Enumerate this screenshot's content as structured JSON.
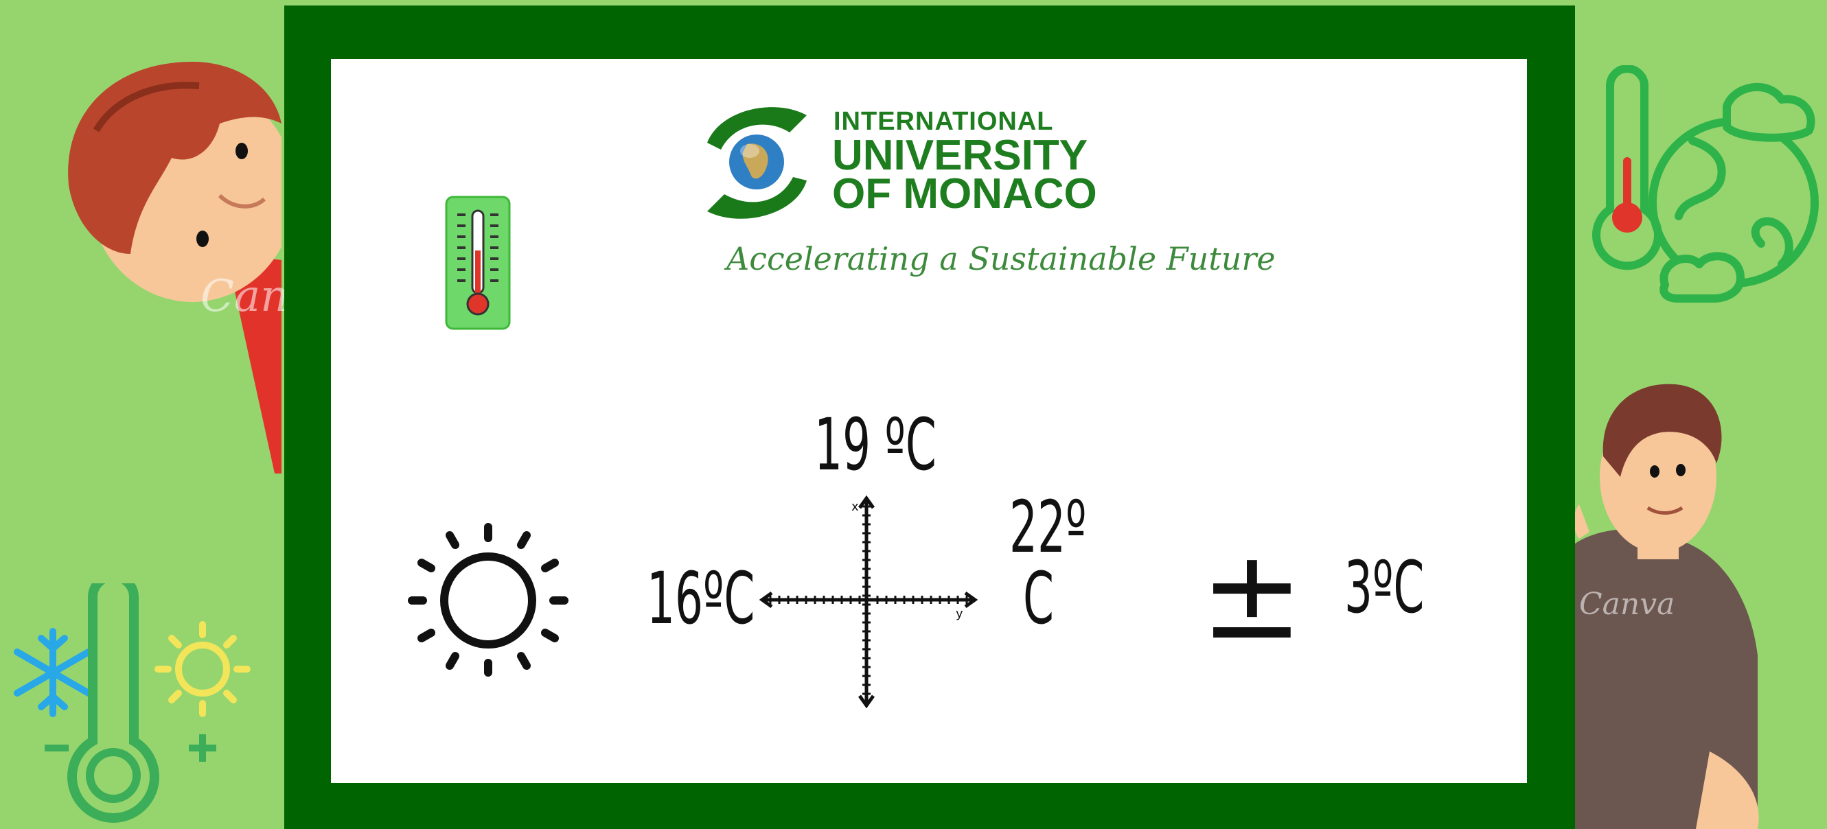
{
  "logo": {
    "line1": "INTERNATIONAL",
    "line2": "UNIVERSITY",
    "line3": "OF MONACO",
    "tagline": "Accelerating a Sustainable Future"
  },
  "readings": {
    "top": "19 ºC",
    "left": "16ºC",
    "right_line1": "22º",
    "right_line2": "C",
    "plus_minus": "±",
    "tolerance": "3ºC"
  },
  "axes": {
    "x_label": "x",
    "y_label": "y"
  },
  "colors": {
    "background": "#96d56e",
    "frame": "#006400",
    "logo_green": "#1e7d1e",
    "icon_green": "#2eb34a",
    "thermo_red": "#e0352b"
  },
  "icons": [
    "thermometer-icon",
    "sun-icon",
    "thermometer-globe-icon",
    "snowflake-icon",
    "thermometer-sun-icon"
  ]
}
